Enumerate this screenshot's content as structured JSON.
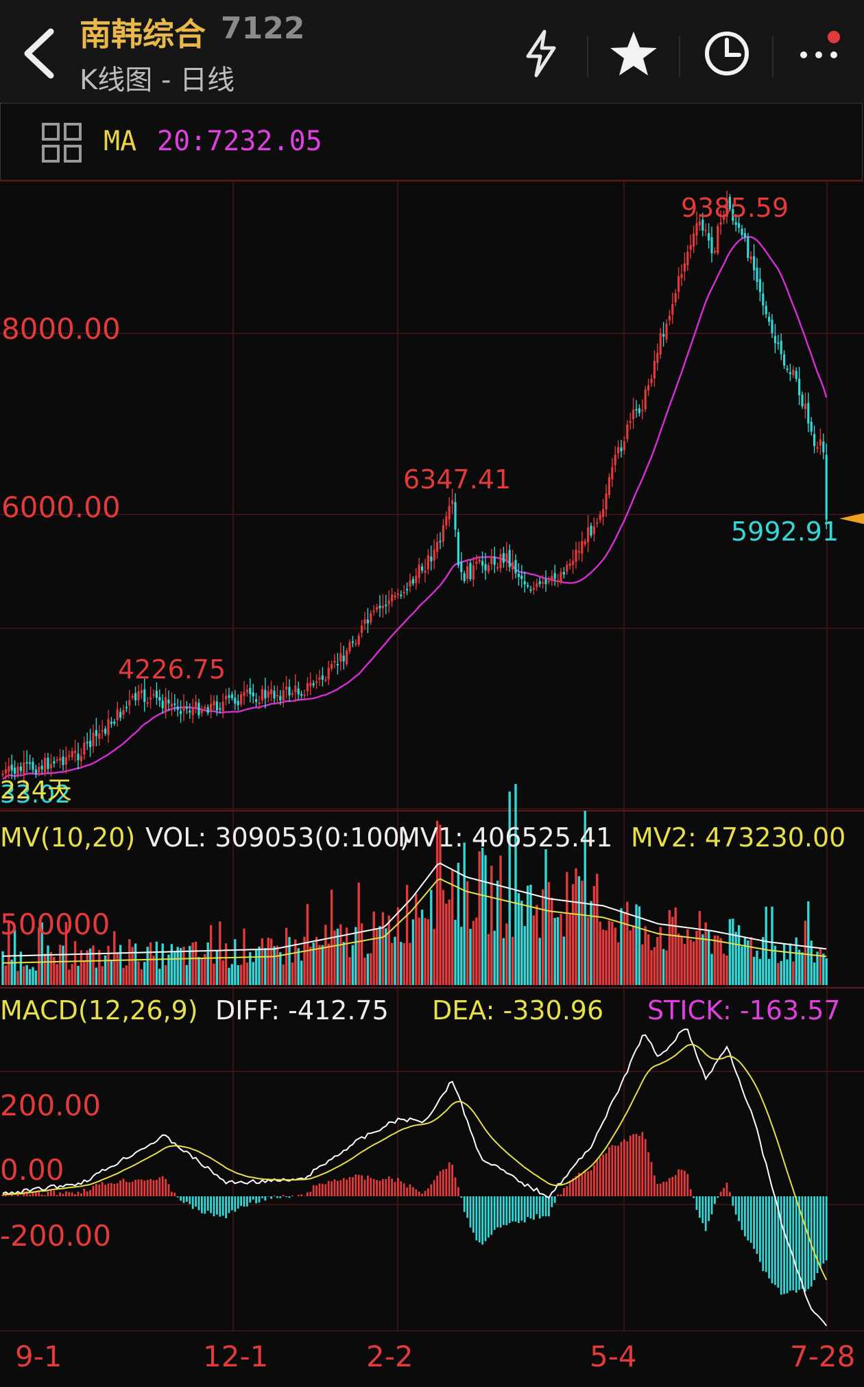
{
  "header": {
    "title": "南韩综合",
    "code": "7122",
    "subtitle": "K线图 - 日线"
  },
  "indicator_bar": {
    "ma_label": "MA",
    "ma_value": "20:7232.05"
  },
  "colors": {
    "up": "#e33b3b",
    "down": "#35d6d6",
    "ma": "#d62fd6",
    "mv1": "#ffffff",
    "mv2": "#e8e04a",
    "title": "#e8b84a"
  },
  "chart_data": [
    {
      "type": "candlestick",
      "y_ticks": [
        "8000.00",
        "6000.00"
      ],
      "ylim": [
        4200,
        9800
      ],
      "annotations": {
        "high": "9385.59",
        "peak_2": "6347.41",
        "peak_1": "4226.75",
        "last": "5992.91",
        "bottom_left_1": "33.02",
        "bottom_left_2": "224天"
      },
      "x_ticks": [
        "9-1",
        "12-1",
        "2-2",
        "5-4",
        "7-28"
      ],
      "ma_series_name": "MA 20"
    },
    {
      "type": "bar",
      "title": "MV(10,20)",
      "vol_label": "VOL: 309053(0:100)",
      "mv1_label": "MV1: 406525.41",
      "mv2_label": "MV2: 473230.00",
      "y_ticks": [
        "500000"
      ]
    },
    {
      "type": "bar",
      "title": "MACD(12,26,9)",
      "diff_label": "DIFF: -412.75",
      "dea_label": "DEA: -330.96",
      "stick_label": "STICK: -163.57",
      "y_ticks": [
        "200.00",
        "0.00",
        "-200.00"
      ]
    }
  ]
}
